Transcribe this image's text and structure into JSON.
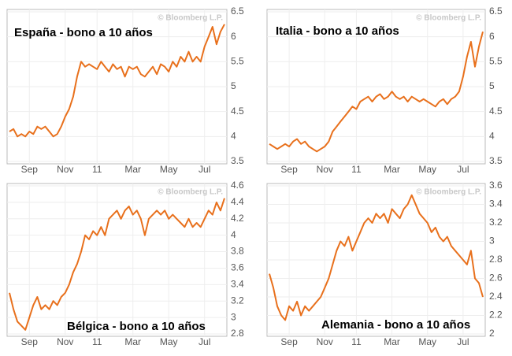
{
  "chart_data": [
    {
      "type": "line",
      "title": "España - bono a 10 años",
      "source": "© Bloomberg L.P.",
      "color": "#e8701c",
      "grid": true,
      "categories": [
        null,
        null,
        null,
        null,
        null,
        "Sep",
        null,
        null,
        null,
        null,
        null,
        null,
        null,
        null,
        "Nov",
        null,
        null,
        null,
        null,
        null,
        null,
        null,
        "11",
        null,
        null,
        null,
        null,
        null,
        null,
        null,
        null,
        "Mar",
        null,
        null,
        null,
        null,
        null,
        null,
        null,
        null,
        "May",
        null,
        null,
        null,
        null,
        null,
        null,
        null,
        null,
        "Jul",
        null,
        null,
        null,
        null,
        null
      ],
      "values": [
        4.1,
        4.15,
        4.0,
        4.05,
        4.0,
        4.1,
        4.05,
        4.2,
        4.15,
        4.2,
        4.1,
        4.0,
        4.05,
        4.2,
        4.4,
        4.55,
        4.8,
        5.2,
        5.5,
        5.4,
        5.45,
        5.4,
        5.35,
        5.5,
        5.4,
        5.3,
        5.45,
        5.35,
        5.4,
        5.2,
        5.4,
        5.35,
        5.4,
        5.25,
        5.2,
        5.3,
        5.4,
        5.25,
        5.45,
        5.4,
        5.3,
        5.5,
        5.4,
        5.6,
        5.5,
        5.7,
        5.5,
        5.6,
        5.5,
        5.8,
        6.0,
        6.2,
        5.85,
        6.1,
        6.25
      ],
      "ylim": [
        3.5,
        6.5
      ],
      "yticks": [
        3.5,
        4,
        4.5,
        5,
        5.5,
        6,
        6.5
      ]
    },
    {
      "type": "line",
      "title": "Italia - bono a 10 años",
      "source": "© Bloomberg L.P.",
      "color": "#e8701c",
      "grid": true,
      "categories": [
        null,
        null,
        null,
        null,
        null,
        "Sep",
        null,
        null,
        null,
        null,
        null,
        null,
        null,
        null,
        "Nov",
        null,
        null,
        null,
        null,
        null,
        null,
        null,
        "11",
        null,
        null,
        null,
        null,
        null,
        null,
        null,
        null,
        "Mar",
        null,
        null,
        null,
        null,
        null,
        null,
        null,
        null,
        "May",
        null,
        null,
        null,
        null,
        null,
        null,
        null,
        null,
        "Jul",
        null,
        null,
        null,
        null,
        null
      ],
      "values": [
        3.85,
        3.8,
        3.75,
        3.8,
        3.85,
        3.8,
        3.9,
        3.95,
        3.85,
        3.9,
        3.8,
        3.75,
        3.7,
        3.75,
        3.8,
        3.9,
        4.1,
        4.2,
        4.3,
        4.4,
        4.5,
        4.6,
        4.55,
        4.7,
        4.75,
        4.8,
        4.7,
        4.8,
        4.85,
        4.75,
        4.8,
        4.9,
        4.8,
        4.75,
        4.8,
        4.7,
        4.8,
        4.75,
        4.7,
        4.75,
        4.7,
        4.65,
        4.6,
        4.7,
        4.75,
        4.65,
        4.75,
        4.8,
        4.9,
        5.2,
        5.6,
        5.9,
        5.4,
        5.8,
        6.1
      ],
      "ylim": [
        3.5,
        6.5
      ],
      "yticks": [
        3.5,
        4,
        4.5,
        5,
        5.5,
        6,
        6.5
      ]
    },
    {
      "type": "line",
      "title": "Bélgica - bono a 10 años",
      "source": "© Bloomberg L.P.",
      "color": "#e8701c",
      "grid": true,
      "categories": [
        null,
        null,
        null,
        null,
        null,
        "Sep",
        null,
        null,
        null,
        null,
        null,
        null,
        null,
        null,
        "Nov",
        null,
        null,
        null,
        null,
        null,
        null,
        null,
        "11",
        null,
        null,
        null,
        null,
        null,
        null,
        null,
        null,
        "Mar",
        null,
        null,
        null,
        null,
        null,
        null,
        null,
        null,
        "May",
        null,
        null,
        null,
        null,
        null,
        null,
        null,
        null,
        "Jul",
        null,
        null,
        null,
        null,
        null
      ],
      "values": [
        3.3,
        3.1,
        2.95,
        2.9,
        2.85,
        3.0,
        3.15,
        3.25,
        3.1,
        3.15,
        3.1,
        3.2,
        3.15,
        3.25,
        3.3,
        3.4,
        3.55,
        3.65,
        3.8,
        4.0,
        3.95,
        4.05,
        4.0,
        4.1,
        4.0,
        4.2,
        4.25,
        4.3,
        4.2,
        4.3,
        4.35,
        4.25,
        4.3,
        4.2,
        4.0,
        4.2,
        4.25,
        4.3,
        4.25,
        4.3,
        4.2,
        4.25,
        4.2,
        4.15,
        4.1,
        4.2,
        4.1,
        4.15,
        4.1,
        4.2,
        4.3,
        4.25,
        4.4,
        4.3,
        4.45
      ],
      "ylim": [
        2.8,
        4.6
      ],
      "yticks": [
        2.8,
        3,
        3.2,
        3.4,
        3.6,
        3.8,
        4,
        4.2,
        4.4,
        4.6
      ]
    },
    {
      "type": "line",
      "title": "Alemania - bono a 10 años",
      "source": "© Bloomberg L.P.",
      "color": "#e8701c",
      "grid": true,
      "categories": [
        null,
        null,
        null,
        null,
        null,
        "Sep",
        null,
        null,
        null,
        null,
        null,
        null,
        null,
        null,
        "Nov",
        null,
        null,
        null,
        null,
        null,
        null,
        null,
        "11",
        null,
        null,
        null,
        null,
        null,
        null,
        null,
        null,
        "Mar",
        null,
        null,
        null,
        null,
        null,
        null,
        null,
        null,
        "May",
        null,
        null,
        null,
        null,
        null,
        null,
        null,
        null,
        "Jul",
        null,
        null,
        null,
        null,
        null
      ],
      "values": [
        2.65,
        2.5,
        2.3,
        2.2,
        2.15,
        2.3,
        2.25,
        2.35,
        2.2,
        2.3,
        2.25,
        2.3,
        2.35,
        2.4,
        2.5,
        2.6,
        2.75,
        2.9,
        3.0,
        2.95,
        3.05,
        2.9,
        3.0,
        3.1,
        3.2,
        3.25,
        3.2,
        3.3,
        3.25,
        3.3,
        3.2,
        3.35,
        3.3,
        3.25,
        3.35,
        3.4,
        3.5,
        3.4,
        3.3,
        3.25,
        3.2,
        3.1,
        3.15,
        3.05,
        3.0,
        3.05,
        2.95,
        2.9,
        2.85,
        2.8,
        2.75,
        2.9,
        2.6,
        2.55,
        2.4
      ],
      "ylim": [
        2,
        3.6
      ],
      "yticks": [
        2,
        2.2,
        2.4,
        2.6,
        2.8,
        3,
        3.2,
        3.4,
        3.6
      ]
    }
  ]
}
